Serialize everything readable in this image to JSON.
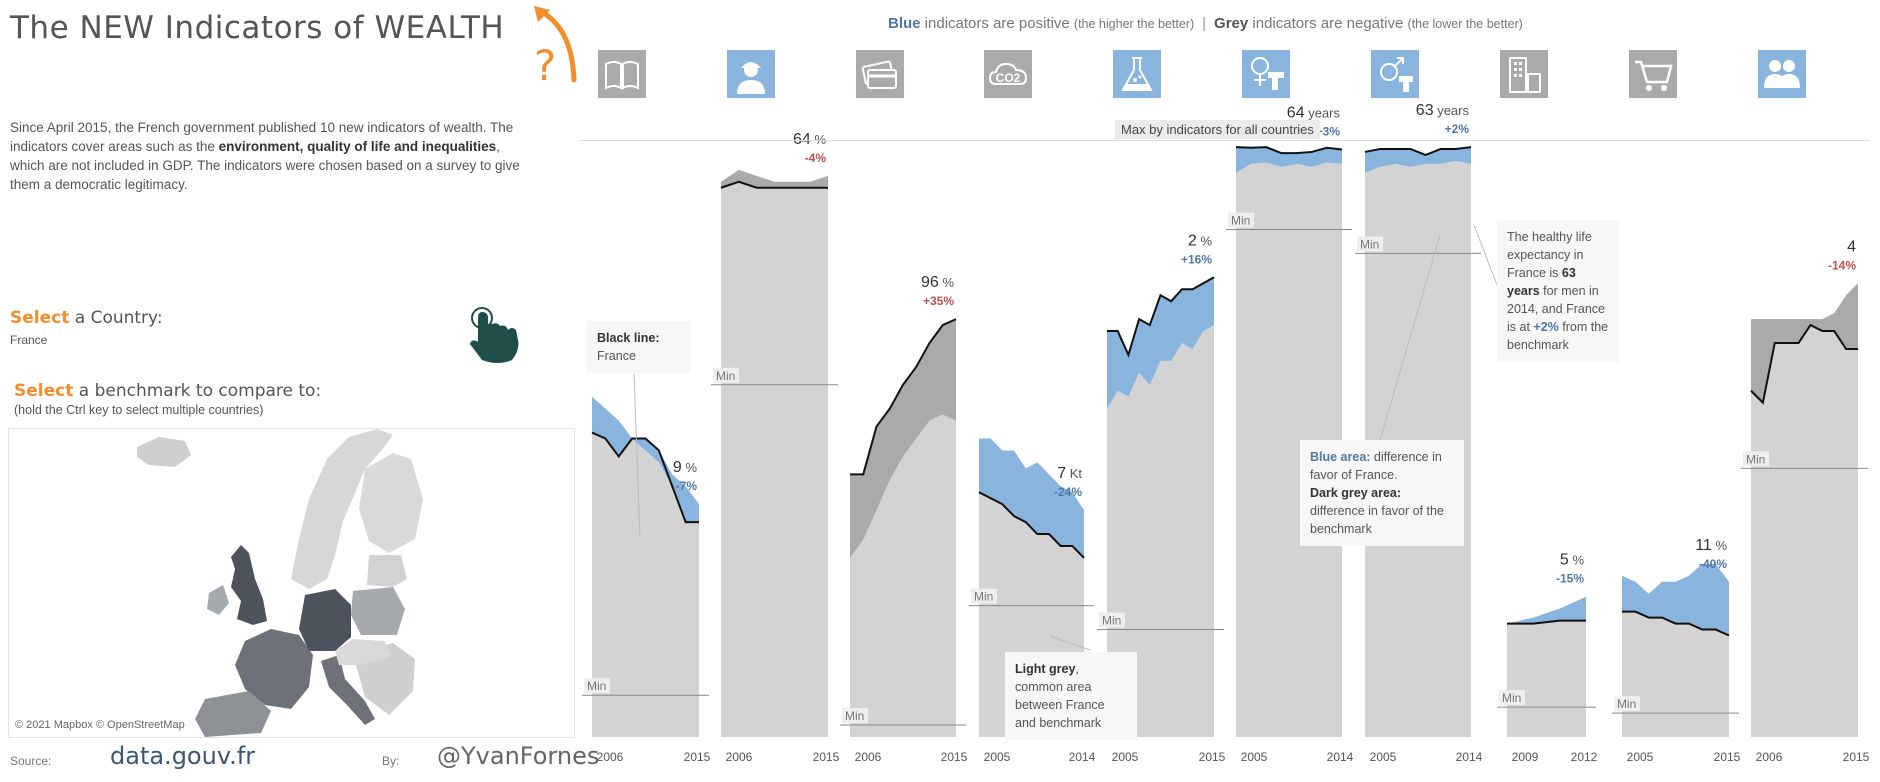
{
  "title": "The NEW Indicators of WEALTH",
  "intro": {
    "p1": "Since April 2015, the French government published 10 new indicators of wealth. The indicators cover areas such as the ",
    "bold": "environment, quality of life and inequalities",
    "p2": ", which are not included in GDP. The indicators  were chosen based on a survey to give them a democratic legitimacy."
  },
  "select_country": {
    "hl": "Select",
    "rest": " a Country:",
    "value": "France"
  },
  "select_benchmark": {
    "hl": "Select",
    "rest": " a benchmark to compare to:",
    "hint": "(hold the Ctrl key to select multiple countries)"
  },
  "map": {
    "credit": "© 2021 Mapbox © OpenStreetMap"
  },
  "footer": {
    "source_label": "Source:",
    "source_value": "data.gouv.fr",
    "by_label": "By:",
    "by_value": "@YvanFornes"
  },
  "legend": {
    "blue_word": "Blue",
    "blue_text": " indicators are positive ",
    "blue_note": "(the higher the better)",
    "separator": "|",
    "grey_word": "Grey",
    "grey_text": " indicators are negative ",
    "grey_note": "(the lower the better)"
  },
  "max_label": "Max by indicators for all countries",
  "icons": [
    {
      "name": "book-icon",
      "type": "grey"
    },
    {
      "name": "worker-icon",
      "type": "blue"
    },
    {
      "name": "credit-card-icon",
      "type": "grey"
    },
    {
      "name": "co2-icon",
      "type": "grey",
      "text": "CO2"
    },
    {
      "name": "flask-icon",
      "type": "blue"
    },
    {
      "name": "female-health-icon",
      "type": "blue"
    },
    {
      "name": "male-health-icon",
      "type": "blue"
    },
    {
      "name": "buildings-icon",
      "type": "grey"
    },
    {
      "name": "cart-icon",
      "type": "grey"
    },
    {
      "name": "people-icon",
      "type": "blue"
    }
  ],
  "tooltips": {
    "black_line": {
      "title": "Black line:",
      "text": "France"
    },
    "light_grey": {
      "bold": "Light grey",
      "text": ", common area between France and benchmark"
    },
    "areas": {
      "blue_bold": "Blue area:",
      "blue_text": " difference in favor of France.",
      "grey_bold": "Dark grey area:",
      "grey_text": " difference in favor of the benchmark"
    },
    "healthy": {
      "t1": "The healthy life expectancy in France is ",
      "b1": "63 years",
      "t2": " for men in 2014, and France is at ",
      "b2": "+2%",
      "t3": " from the benchmark"
    }
  },
  "chart_data": {
    "type": "area",
    "min_label": "Min",
    "colors": {
      "common": "#d3d3d3",
      "favor_france": "#89b4dd",
      "favor_benchmark": "#a9abab",
      "line": "#111111",
      "negative_delta": "#c0504d",
      "positive_delta": "#4e79a7"
    },
    "panels": [
      {
        "start": "2006",
        "end": "2015",
        "value": "9",
        "unit": "%",
        "delta": "-7%",
        "min": 0.07,
        "france": [
          0.51,
          0.5,
          0.47,
          0.5,
          0.5,
          0.48,
          0.42,
          0.36,
          0.36
        ],
        "bench": [
          0.57,
          0.55,
          0.53,
          0.5,
          0.48,
          0.46,
          0.44,
          0.42,
          0.39
        ]
      },
      {
        "start": "2006",
        "end": "2015",
        "value": "64",
        "unit": "%",
        "delta": "-4%",
        "min": 0.59,
        "france": [
          0.92,
          0.93,
          0.92,
          0.92,
          0.92,
          0.92,
          0.92
        ],
        "bench": [
          0.93,
          0.95,
          0.94,
          0.93,
          0.93,
          0.93,
          0.94
        ]
      },
      {
        "start": "2006",
        "end": "2015",
        "value": "96",
        "unit": "%",
        "delta": "+35%",
        "min": 0.02,
        "france": [
          0.44,
          0.44,
          0.52,
          0.55,
          0.59,
          0.62,
          0.66,
          0.69,
          0.7
        ],
        "bench": [
          0.3,
          0.33,
          0.38,
          0.43,
          0.47,
          0.5,
          0.53,
          0.54,
          0.53
        ]
      },
      {
        "start": "2005",
        "end": "2014",
        "value": "7",
        "unit": "Kt",
        "delta": "-24%",
        "min": 0.22,
        "france": [
          0.41,
          0.4,
          0.39,
          0.37,
          0.36,
          0.34,
          0.34,
          0.32,
          0.32,
          0.3
        ],
        "bench": [
          0.5,
          0.5,
          0.48,
          0.48,
          0.45,
          0.46,
          0.44,
          0.42,
          0.41,
          0.38
        ]
      },
      {
        "start": "2005",
        "end": "2015",
        "value": "2",
        "unit": "%",
        "delta": "+16%",
        "min": 0.18,
        "france": [
          0.68,
          0.68,
          0.64,
          0.7,
          0.69,
          0.74,
          0.73,
          0.75,
          0.75,
          0.76,
          0.77
        ],
        "bench": [
          0.55,
          0.58,
          0.57,
          0.61,
          0.59,
          0.63,
          0.63,
          0.66,
          0.65,
          0.68,
          0.69
        ]
      },
      {
        "start": "2005",
        "end": "2014",
        "value": "64",
        "unit": "years",
        "delta": "+3%",
        "min": 0.85,
        "france": [
          0.988,
          0.987,
          0.988,
          0.978,
          0.978,
          0.98,
          0.987,
          0.984
        ],
        "bench": [
          0.945,
          0.96,
          0.962,
          0.955,
          0.96,
          0.955,
          0.962,
          0.96
        ]
      },
      {
        "start": "2005",
        "end": "2014",
        "value": "63",
        "unit": "years",
        "delta": "+2%",
        "min": 0.81,
        "france": [
          0.98,
          0.985,
          0.985,
          0.985,
          0.975,
          0.985,
          0.985,
          0.988
        ],
        "bench": [
          0.945,
          0.955,
          0.96,
          0.955,
          0.96,
          0.96,
          0.965,
          0.96
        ]
      },
      {
        "start": "2009",
        "end": "2012",
        "value": "5",
        "unit": "%",
        "delta": "-15%",
        "min": 0.05,
        "france": [
          0.19,
          0.19,
          0.195,
          0.195
        ],
        "bench": [
          0.19,
          0.2,
          0.215,
          0.235
        ]
      },
      {
        "start": "2005",
        "end": "2015",
        "value": "11",
        "unit": "%",
        "delta": "-40%",
        "min": 0.04,
        "france": [
          0.21,
          0.21,
          0.2,
          0.2,
          0.19,
          0.19,
          0.18,
          0.18,
          0.17
        ],
        "bench": [
          0.27,
          0.26,
          0.24,
          0.26,
          0.26,
          0.27,
          0.29,
          0.29,
          0.26
        ]
      },
      {
        "start": "2006",
        "end": "2015",
        "value": "4",
        "unit": "",
        "delta": "-14%",
        "min": 0.45,
        "france": [
          0.58,
          0.56,
          0.66,
          0.66,
          0.66,
          0.69,
          0.68,
          0.68,
          0.65,
          0.65
        ],
        "bench": [
          0.7,
          0.7,
          0.7,
          0.7,
          0.7,
          0.7,
          0.7,
          0.71,
          0.74,
          0.76
        ]
      }
    ]
  }
}
